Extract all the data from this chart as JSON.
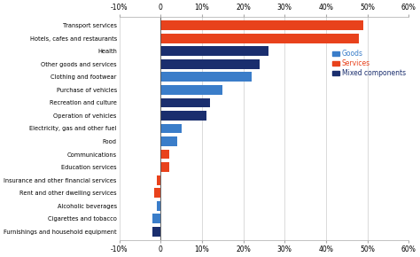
{
  "categories": [
    "Transport services",
    "Hotels, cafes and restaurants",
    "Health",
    "Other goods and services",
    "Clothing and footwear",
    "Purchase of vehicles",
    "Recreation and culture",
    "Operation of vehicles",
    "Electricity, gas and other fuel",
    "Food",
    "Communications",
    "Education services",
    "Insurance and other financial services",
    "Rent and other dwelling services",
    "Alcoholic beverages",
    "Cigarettes and tobacco",
    "Furnishings and household equipment"
  ],
  "values": [
    49,
    48,
    26,
    24,
    22,
    15,
    12,
    11,
    5,
    4,
    2,
    2,
    -1,
    -1.5,
    -1,
    -2,
    -2
  ],
  "colors": [
    "#e8421c",
    "#e8421c",
    "#1a2e6e",
    "#1a2e6e",
    "#3a7dc9",
    "#3a7dc9",
    "#1a2e6e",
    "#1a2e6e",
    "#3a7dc9",
    "#3a7dc9",
    "#e8421c",
    "#e8421c",
    "#e8421c",
    "#e8421c",
    "#3a7dc9",
    "#3a7dc9",
    "#1a2e6e"
  ],
  "legend_labels": [
    "Goods",
    "Services",
    "Mixed components"
  ],
  "legend_colors": [
    "#3a7dc9",
    "#e8421c",
    "#1a2e6e"
  ],
  "xlim": [
    -10,
    60
  ],
  "xticks": [
    -10,
    0,
    10,
    20,
    30,
    40,
    50,
    60
  ],
  "xtick_labels": [
    "-10%",
    "0",
    "10%",
    "20%",
    "30%",
    "40%",
    "50%",
    "60%"
  ],
  "background_color": "#ffffff",
  "bar_height": 0.75,
  "figsize": [
    4.74,
    2.9
  ],
  "dpi": 100
}
